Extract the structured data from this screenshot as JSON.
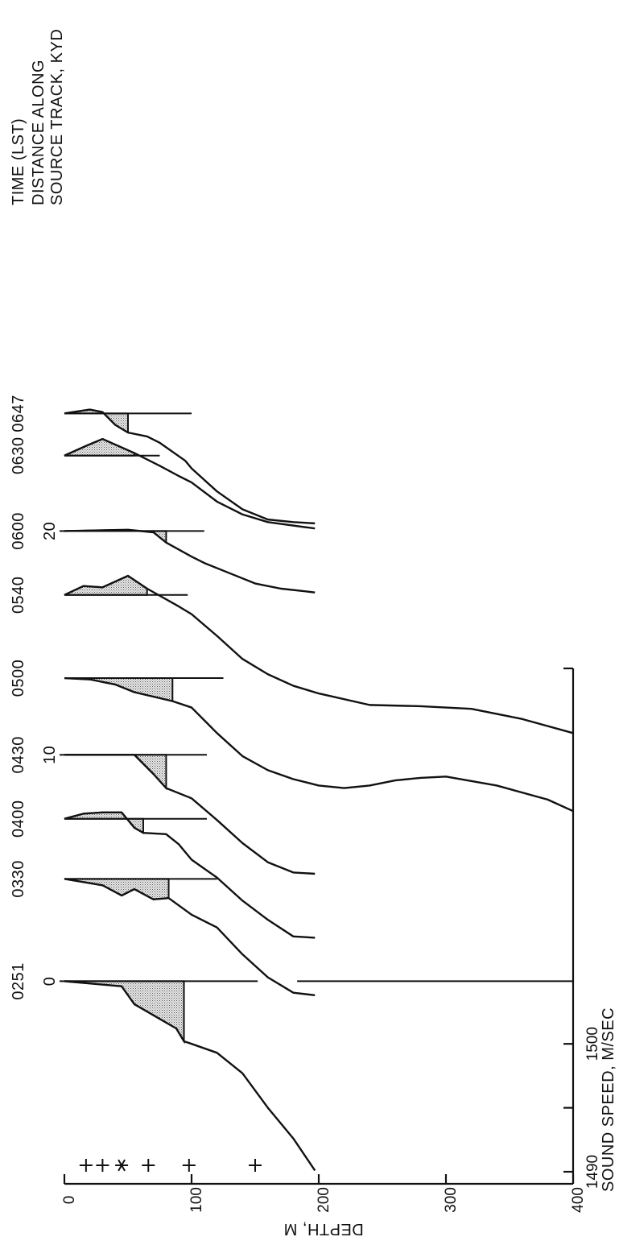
{
  "chart_data": {
    "type": "line",
    "orientation": "rotated 90 degrees counter-clockwise",
    "title": "",
    "xlabel": "SOUND SPEED, M/SEC",
    "ylabel": "DEPTH, M",
    "header_labels": [
      "TIME (LST)",
      "DISTANCE ALONG",
      "SOURCE TRACK, KYD"
    ],
    "depth_ticks": [
      "0",
      "100",
      "200",
      "300",
      "400"
    ],
    "depth_range": [
      0,
      400
    ],
    "speed_ticks": [
      "1490",
      "1500"
    ],
    "speed_axis_note": "each profile is offset; scale bar of 10 m/sec shown between 1490 and 1500",
    "distance_ticks": [
      {
        "label": "0",
        "at_time": "0251"
      },
      {
        "label": "10",
        "at_time": "0430"
      },
      {
        "label": "20",
        "at_time": "0600"
      }
    ],
    "markers": {
      "plus_depths": [
        17,
        30,
        66,
        98,
        150
      ],
      "asterisk_depth": 45
    },
    "shaded_layer": "stippled near-surface region of each profile",
    "series": [
      {
        "name": "0251",
        "depth": [
          0,
          45,
          55,
          88,
          94,
          100,
          120,
          140,
          160,
          180,
          197
        ],
        "speed": [
          1504.9,
          1504.5,
          1503.1,
          1501.2,
          1500.2,
          1500.0,
          1499.3,
          1497.7,
          1495.0,
          1492.6,
          1490.1
        ],
        "reference_line_depth": [
          0,
          152
        ],
        "shaded_to_depth": 94
      },
      {
        "name": "0330",
        "depth": [
          0,
          30,
          45,
          55,
          70,
          82,
          100,
          120,
          140,
          160,
          180,
          197
        ],
        "speed": [
          1512.9,
          1512.4,
          1511.6,
          1512.1,
          1511.3,
          1511.4,
          1510.1,
          1509.1,
          1507.0,
          1505.2,
          1504.0,
          1503.8
        ],
        "reference_line_depth": [
          0,
          120
        ],
        "shaded_to_depth": 82
      },
      {
        "name": "0400",
        "depth": [
          0,
          15,
          30,
          45,
          55,
          62,
          80,
          90,
          100,
          120,
          140,
          160,
          180,
          197
        ],
        "speed": [
          1517.6,
          1518.0,
          1518.1,
          1518.1,
          1516.9,
          1516.5,
          1516.4,
          1515.6,
          1514.4,
          1513.0,
          1511.2,
          1509.7,
          1508.4,
          1508.3
        ],
        "reference_line_depth": [
          0,
          112
        ],
        "shaded_to_depth": 62
      },
      {
        "name": "0430",
        "depth": [
          0,
          55,
          70,
          80,
          100,
          120,
          140,
          160,
          180,
          197
        ],
        "speed": [
          1522.6,
          1522.6,
          1521.1,
          1520.0,
          1519.2,
          1517.5,
          1515.7,
          1514.2,
          1513.4,
          1513.3
        ],
        "reference_line_depth": [
          0,
          112
        ],
        "shaded_to_depth": 80
      },
      {
        "name": "0500",
        "depth": [
          0,
          20,
          40,
          55,
          85,
          100,
          120,
          140,
          160,
          180,
          200,
          220,
          240,
          260,
          280,
          300,
          340,
          380,
          400
        ],
        "speed": [
          1528.6,
          1528.5,
          1528.1,
          1527.5,
          1526.8,
          1526.3,
          1524.3,
          1522.5,
          1521.4,
          1520.7,
          1520.2,
          1520.0,
          1520.2,
          1520.6,
          1520.8,
          1520.9,
          1520.2,
          1519.1,
          1518.2
        ],
        "reference_line_depth": [
          0,
          125
        ],
        "shaded_to_depth": 85
      },
      {
        "name": "0540",
        "depth": [
          0,
          15,
          30,
          50,
          65,
          90,
          100,
          120,
          140,
          160,
          180,
          200,
          240,
          280,
          320,
          360,
          400
        ],
        "speed": [
          1535.1,
          1535.8,
          1535.7,
          1536.6,
          1535.6,
          1534.2,
          1533.6,
          1531.9,
          1530.1,
          1528.9,
          1528.0,
          1527.4,
          1526.5,
          1526.4,
          1526.2,
          1525.4,
          1524.3
        ],
        "reference_line_depth": [
          0,
          97
        ],
        "shaded_to_depth": 65
      },
      {
        "name": "0600",
        "depth": [
          0,
          50,
          70,
          80,
          100,
          110,
          130,
          150,
          170,
          197
        ],
        "speed": [
          1540.1,
          1540.2,
          1540.0,
          1539.2,
          1538.1,
          1537.6,
          1536.8,
          1536.0,
          1535.6,
          1535.3
        ],
        "reference_line_depth": [
          0,
          110
        ],
        "shaded_to_depth": 80
      },
      {
        "name": "0630",
        "depth": [
          0,
          18,
          30,
          55,
          75,
          90,
          100,
          120,
          140,
          160,
          197
        ],
        "speed": [
          1546.0,
          1546.8,
          1547.3,
          1546.2,
          1545.2,
          1544.4,
          1543.9,
          1542.4,
          1541.4,
          1540.8,
          1540.3
        ],
        "reference_line_depth": [
          0,
          75
        ],
        "shaded_to_depth": 55
      },
      {
        "name": "0647",
        "depth": [
          0,
          20,
          30,
          40,
          50,
          65,
          75,
          95,
          100,
          120,
          140,
          160,
          180,
          197
        ],
        "speed": [
          1549.3,
          1549.6,
          1549.4,
          1548.4,
          1547.8,
          1547.5,
          1547.0,
          1545.6,
          1545.0,
          1543.2,
          1541.8,
          1541.0,
          1540.8,
          1540.7
        ],
        "reference_line_depth": [
          0,
          100
        ],
        "shaded_to_depth": 50
      }
    ]
  }
}
